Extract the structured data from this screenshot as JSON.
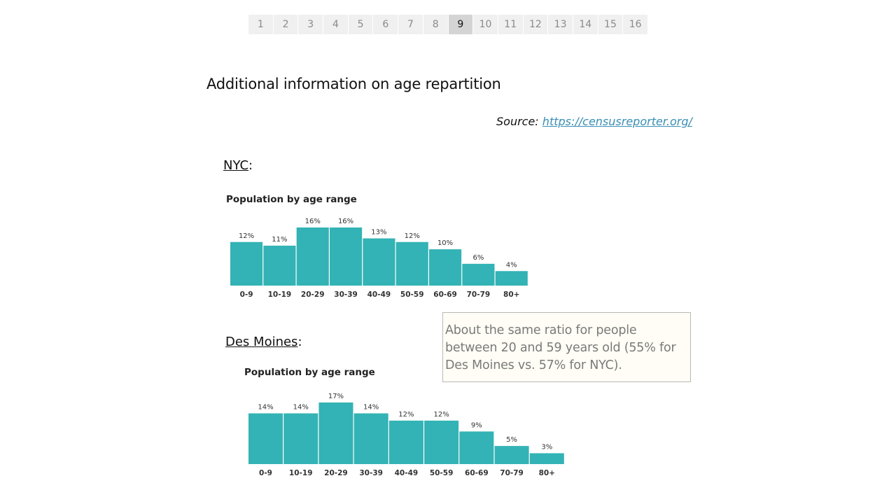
{
  "pager": {
    "pages": [
      "1",
      "2",
      "3",
      "4",
      "5",
      "6",
      "7",
      "8",
      "9",
      "10",
      "11",
      "12",
      "13",
      "14",
      "15",
      "16"
    ],
    "active": "9"
  },
  "title": "Additional information on age repartition",
  "source": {
    "label": "Source:",
    "link_text": "https://censusreporter.org/"
  },
  "nyc_section": {
    "name": "NYC",
    "suffix": ":"
  },
  "des_moines_section": {
    "name": "Des Moines",
    "suffix": ":"
  },
  "note": "About the same ratio for people between 20 and 59 years old (55% for Des Moines vs. 57% for NYC).",
  "bar_color": "#33b3b5",
  "chart_data": [
    {
      "type": "bar",
      "title": "Population by age range",
      "categories": [
        "0-9",
        "10-19",
        "20-29",
        "30-39",
        "40-49",
        "50-59",
        "60-69",
        "70-79",
        "80+"
      ],
      "values": [
        12,
        11,
        16,
        16,
        13,
        12,
        10,
        6,
        4
      ],
      "value_labels": [
        "12%",
        "11%",
        "16%",
        "16%",
        "13%",
        "12%",
        "10%",
        "6%",
        "4%"
      ],
      "ylim": [
        0,
        16
      ]
    },
    {
      "type": "bar",
      "title": "Population by age range",
      "categories": [
        "0-9",
        "10-19",
        "20-29",
        "30-39",
        "40-49",
        "50-59",
        "60-69",
        "70-79",
        "80+"
      ],
      "values": [
        14,
        14,
        17,
        14,
        12,
        12,
        9,
        5,
        3
      ],
      "value_labels": [
        "14%",
        "14%",
        "17%",
        "14%",
        "12%",
        "12%",
        "9%",
        "5%",
        "3%"
      ],
      "ylim": [
        0,
        17
      ]
    }
  ]
}
